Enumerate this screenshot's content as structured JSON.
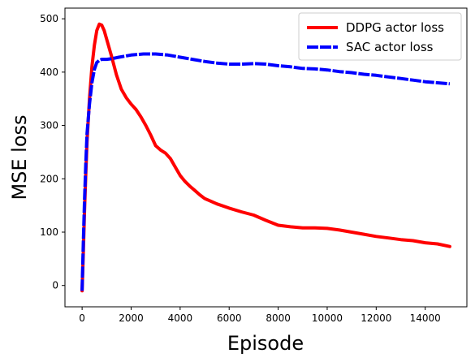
{
  "chart_data": {
    "type": "line",
    "title": "",
    "xlabel": "Episode",
    "ylabel": "MSE loss",
    "xlim": [
      -700,
      15700
    ],
    "ylim": [
      -40,
      520
    ],
    "xticks": [
      0,
      2000,
      4000,
      6000,
      8000,
      10000,
      12000,
      14000
    ],
    "yticks": [
      0,
      100,
      200,
      300,
      400,
      500
    ],
    "grid": false,
    "legend_position": "top-right",
    "series": [
      {
        "name": "DDPG actor loss",
        "color": "#ff0000",
        "line_style": "solid",
        "points": [
          [
            0,
            -10
          ],
          [
            50,
            60
          ],
          [
            100,
            140
          ],
          [
            150,
            210
          ],
          [
            200,
            270
          ],
          [
            300,
            350
          ],
          [
            400,
            410
          ],
          [
            500,
            450
          ],
          [
            600,
            478
          ],
          [
            700,
            490
          ],
          [
            800,
            488
          ],
          [
            900,
            478
          ],
          [
            1000,
            462
          ],
          [
            1200,
            430
          ],
          [
            1400,
            395
          ],
          [
            1600,
            368
          ],
          [
            1800,
            352
          ],
          [
            2000,
            340
          ],
          [
            2200,
            330
          ],
          [
            2400,
            316
          ],
          [
            2600,
            300
          ],
          [
            2800,
            282
          ],
          [
            3000,
            262
          ],
          [
            3200,
            254
          ],
          [
            3400,
            248
          ],
          [
            3600,
            238
          ],
          [
            3800,
            222
          ],
          [
            4000,
            206
          ],
          [
            4200,
            195
          ],
          [
            4400,
            186
          ],
          [
            4600,
            178
          ],
          [
            4800,
            170
          ],
          [
            5000,
            163
          ],
          [
            5500,
            153
          ],
          [
            6000,
            145
          ],
          [
            6500,
            138
          ],
          [
            7000,
            132
          ],
          [
            7500,
            122
          ],
          [
            8000,
            113
          ],
          [
            8500,
            110
          ],
          [
            9000,
            108
          ],
          [
            9500,
            108
          ],
          [
            10000,
            107
          ],
          [
            10500,
            104
          ],
          [
            11000,
            100
          ],
          [
            11500,
            96
          ],
          [
            12000,
            92
          ],
          [
            12500,
            89
          ],
          [
            13000,
            86
          ],
          [
            13500,
            84
          ],
          [
            14000,
            80
          ],
          [
            14500,
            78
          ],
          [
            15000,
            73
          ]
        ]
      },
      {
        "name": "SAC actor loss",
        "color": "#0000ff",
        "line_style": "dashed",
        "points": [
          [
            0,
            -10
          ],
          [
            50,
            80
          ],
          [
            100,
            160
          ],
          [
            150,
            230
          ],
          [
            200,
            285
          ],
          [
            300,
            340
          ],
          [
            400,
            380
          ],
          [
            500,
            405
          ],
          [
            600,
            418
          ],
          [
            700,
            422
          ],
          [
            800,
            424
          ],
          [
            1000,
            424
          ],
          [
            1200,
            425
          ],
          [
            1500,
            428
          ],
          [
            2000,
            432
          ],
          [
            2500,
            434
          ],
          [
            3000,
            434
          ],
          [
            3500,
            432
          ],
          [
            4000,
            428
          ],
          [
            4500,
            424
          ],
          [
            5000,
            420
          ],
          [
            5500,
            417
          ],
          [
            6000,
            415
          ],
          [
            6500,
            415
          ],
          [
            7000,
            416
          ],
          [
            7500,
            415
          ],
          [
            8000,
            412
          ],
          [
            8500,
            410
          ],
          [
            9000,
            407
          ],
          [
            9500,
            406
          ],
          [
            10000,
            404
          ],
          [
            10500,
            401
          ],
          [
            11000,
            399
          ],
          [
            11500,
            396
          ],
          [
            12000,
            394
          ],
          [
            12500,
            391
          ],
          [
            13000,
            388
          ],
          [
            13500,
            385
          ],
          [
            14000,
            382
          ],
          [
            14500,
            380
          ],
          [
            15000,
            378
          ]
        ]
      }
    ]
  }
}
